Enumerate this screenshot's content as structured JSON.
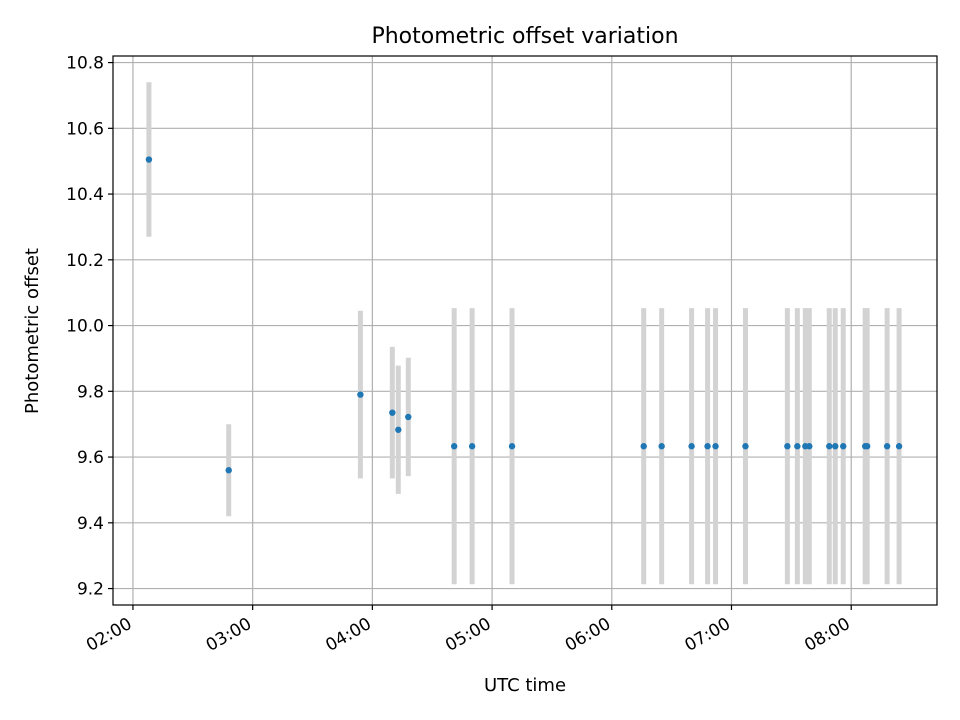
{
  "chart_data": {
    "type": "scatter",
    "title": "Photometric offset variation",
    "xlabel": "UTC time",
    "ylabel": "Photometric offset",
    "grid": true,
    "xlim": [
      "01:50",
      "08:43"
    ],
    "ylim": [
      9.15,
      10.82
    ],
    "xticks": [
      "02:00",
      "03:00",
      "04:00",
      "05:00",
      "06:00",
      "07:00",
      "08:00"
    ],
    "yticks": [
      "9.2",
      "9.4",
      "9.6",
      "9.8",
      "10.0",
      "10.2",
      "10.4",
      "10.6",
      "10.8"
    ],
    "colors": {
      "points": "#1f77b4",
      "errorbars": "#d3d3d3",
      "grid": "#b0b0b0"
    },
    "series": [
      {
        "points": [
          {
            "x": "02:08",
            "y": 10.505,
            "err": 0.235
          },
          {
            "x": "02:48",
            "y": 9.56,
            "err": 0.14
          },
          {
            "x": "03:54",
            "y": 9.79,
            "err": 0.255
          },
          {
            "x": "04:10",
            "y": 9.735,
            "err": 0.2
          },
          {
            "x": "04:13",
            "y": 9.683,
            "err": 0.195
          },
          {
            "x": "04:18",
            "y": 9.722,
            "err": 0.18
          },
          {
            "x": "04:41",
            "y": 9.633,
            "err": 0.42
          },
          {
            "x": "04:50",
            "y": 9.633,
            "err": 0.42
          },
          {
            "x": "05:10",
            "y": 9.633,
            "err": 0.42
          },
          {
            "x": "06:16",
            "y": 9.633,
            "err": 0.42
          },
          {
            "x": "06:25",
            "y": 9.633,
            "err": 0.42
          },
          {
            "x": "06:40",
            "y": 9.633,
            "err": 0.42
          },
          {
            "x": "06:48",
            "y": 9.633,
            "err": 0.42
          },
          {
            "x": "06:52",
            "y": 9.633,
            "err": 0.42
          },
          {
            "x": "07:07",
            "y": 9.633,
            "err": 0.42
          },
          {
            "x": "07:28",
            "y": 9.633,
            "err": 0.42
          },
          {
            "x": "07:33",
            "y": 9.633,
            "err": 0.42
          },
          {
            "x": "07:37",
            "y": 9.633,
            "err": 0.42
          },
          {
            "x": "07:39",
            "y": 9.633,
            "err": 0.42
          },
          {
            "x": "07:49",
            "y": 9.633,
            "err": 0.42
          },
          {
            "x": "07:52",
            "y": 9.633,
            "err": 0.42
          },
          {
            "x": "07:56",
            "y": 9.633,
            "err": 0.42
          },
          {
            "x": "08:07",
            "y": 9.633,
            "err": 0.42
          },
          {
            "x": "08:08",
            "y": 9.633,
            "err": 0.42
          },
          {
            "x": "08:18",
            "y": 9.633,
            "err": 0.42
          },
          {
            "x": "08:24",
            "y": 9.633,
            "err": 0.42
          }
        ]
      }
    ]
  }
}
